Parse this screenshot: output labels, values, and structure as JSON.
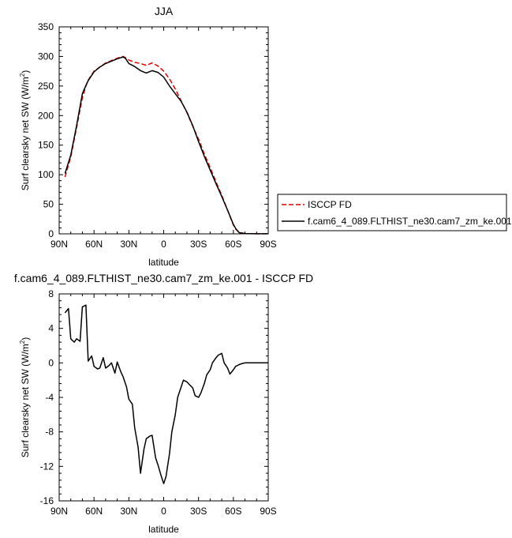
{
  "chart_data": [
    {
      "type": "line",
      "title": "JJA",
      "xlabel": "latitude",
      "ylabel": "Surf clearsky net SW (W/m²)",
      "ylabel_base": "Surf clearsky net SW (W/m",
      "ylabel_sup": "2",
      "ylabel_end": ")",
      "xlim": [
        90,
        -90
      ],
      "ylim": [
        0,
        350
      ],
      "xticks": [
        90,
        60,
        30,
        0,
        -30,
        -60,
        -90
      ],
      "xtick_labels": [
        "90N",
        "60N",
        "30N",
        "0",
        "30S",
        "60S",
        "90S"
      ],
      "yticks": [
        0,
        50,
        100,
        150,
        200,
        250,
        300,
        350
      ],
      "ytick_labels": [
        "0",
        "50",
        "100",
        "150",
        "200",
        "250",
        "300",
        "350"
      ],
      "legend": "right",
      "series": [
        {
          "name": "ISCCP FD",
          "color": "#e00000",
          "dash": "6,3",
          "x": [
            85,
            80,
            75,
            70,
            67,
            65,
            60,
            55,
            50,
            45,
            40,
            35,
            33,
            30,
            25,
            20,
            15,
            10,
            5,
            0,
            -5,
            -10,
            -15,
            -20,
            -25,
            -30,
            -35,
            -40,
            -45,
            -50,
            -55,
            -60,
            -62,
            -65,
            -70,
            -75,
            -80,
            -85,
            -90
          ],
          "y": [
            96,
            130,
            180,
            230,
            250,
            260,
            275,
            282,
            289,
            293,
            297,
            300,
            298,
            294,
            290,
            288,
            285,
            289,
            284,
            275,
            262,
            245,
            225,
            205,
            182,
            160,
            135,
            112,
            88,
            65,
            40,
            15,
            8,
            2,
            0.5,
            0.3,
            0.2,
            0.2,
            0.2
          ]
        },
        {
          "name": "f.cam6_4_089.FLTHIST_ne30.cam7_zm_ke.001",
          "color": "#000000",
          "dash": "",
          "x": [
            85,
            80,
            75,
            70,
            67,
            65,
            60,
            55,
            50,
            45,
            40,
            35,
            33,
            30,
            25,
            20,
            15,
            10,
            5,
            0,
            -5,
            -10,
            -15,
            -20,
            -25,
            -30,
            -35,
            -40,
            -45,
            -50,
            -55,
            -60,
            -62,
            -65,
            -70,
            -75,
            -80,
            -85,
            -90
          ],
          "y": [
            102,
            133,
            183,
            237,
            251,
            259,
            274,
            282,
            288,
            292,
            296,
            299,
            297,
            288,
            283,
            276,
            272,
            276,
            273,
            265,
            250,
            237,
            224,
            206,
            183,
            156,
            131,
            108,
            85,
            63,
            40,
            16,
            9,
            2,
            0.5,
            0.3,
            0.2,
            0.2,
            0.2
          ]
        }
      ]
    },
    {
      "type": "line",
      "title": "f.cam6_4_089.FLTHIST_ne30.cam7_zm_ke.001 - ISCCP FD",
      "xlabel": "latitude",
      "ylabel": "Surf clearsky net SW (W/m²)",
      "ylabel_base": "Surf clearsky net SW (W/m",
      "ylabel_sup": "2",
      "ylabel_end": ")",
      "xlim": [
        90,
        -90
      ],
      "ylim": [
        -16,
        8
      ],
      "xticks": [
        90,
        60,
        30,
        0,
        -30,
        -60,
        -90
      ],
      "xtick_labels": [
        "90N",
        "60N",
        "30N",
        "0",
        "30S",
        "60S",
        "90S"
      ],
      "yticks": [
        -16,
        -12,
        -8,
        -4,
        0,
        4,
        8
      ],
      "ytick_labels": [
        "-16",
        "-12",
        "-8",
        "-4",
        "0",
        "4",
        "8"
      ],
      "series": [
        {
          "color": "#000000",
          "dash": "",
          "x": [
            85,
            82,
            80,
            77,
            75,
            72,
            70,
            67,
            65,
            62,
            60,
            57,
            55,
            52,
            50,
            47,
            45,
            42,
            40,
            37,
            35,
            32,
            30,
            27,
            25,
            22,
            20,
            17,
            15,
            12,
            10,
            7,
            5,
            2,
            0,
            -2,
            -5,
            -7,
            -10,
            -12,
            -15,
            -17,
            -20,
            -22,
            -25,
            -27,
            -30,
            -32,
            -35,
            -37,
            -40,
            -42,
            -45,
            -47,
            -50,
            -52,
            -55,
            -57,
            -60,
            -62,
            -65,
            -67,
            -70,
            -72,
            -75,
            -77,
            -80,
            -82,
            -85,
            -87,
            -90
          ],
          "y": [
            5.8,
            6.3,
            2.8,
            2.4,
            2.8,
            2.5,
            6.5,
            6.7,
            0.2,
            0.8,
            -0.4,
            -0.7,
            -0.6,
            0.6,
            -0.6,
            -0.3,
            0.0,
            -1.2,
            0.1,
            -1.0,
            -1.6,
            -2.8,
            -4.2,
            -4.8,
            -7.5,
            -9.8,
            -12.8,
            -10.0,
            -8.8,
            -8.5,
            -8.4,
            -11.0,
            -11.8,
            -13.2,
            -14.0,
            -13.2,
            -10.5,
            -8.0,
            -6.0,
            -4.0,
            -2.8,
            -2.0,
            -2.2,
            -2.5,
            -2.9,
            -3.8,
            -4.0,
            -3.5,
            -2.4,
            -1.4,
            -0.8,
            0.0,
            0.6,
            0.9,
            1.1,
            0.0,
            -0.6,
            -1.3,
            -0.8,
            -0.4,
            -0.2,
            -0.1,
            0.0,
            0.0,
            0.0,
            0.0,
            0.0,
            0.0,
            0.0,
            0.0,
            0.0
          ]
        }
      ]
    }
  ]
}
